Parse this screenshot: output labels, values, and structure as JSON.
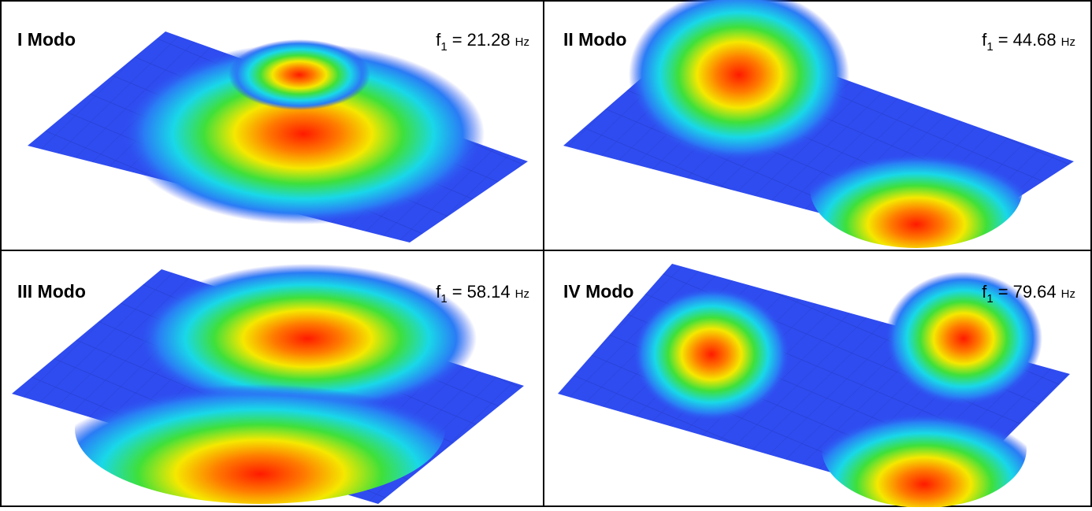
{
  "panels": [
    {
      "label": "I Modo",
      "frequency": {
        "symbol": "f",
        "subscript": "1",
        "equals": "=",
        "value": "21.28",
        "unit": "Hz"
      }
    },
    {
      "label": "II Modo",
      "frequency": {
        "symbol": "f",
        "subscript": "1",
        "equals": "=",
        "value": "44.68",
        "unit": "Hz"
      }
    },
    {
      "label": "III Modo",
      "frequency": {
        "symbol": "f",
        "subscript": "1",
        "equals": "=",
        "value": "58.14",
        "unit": "Hz"
      }
    },
    {
      "label": "IV Modo",
      "frequency": {
        "symbol": "f",
        "subscript": "1",
        "equals": "=",
        "value": "79.64",
        "unit": "Hz"
      }
    }
  ]
}
